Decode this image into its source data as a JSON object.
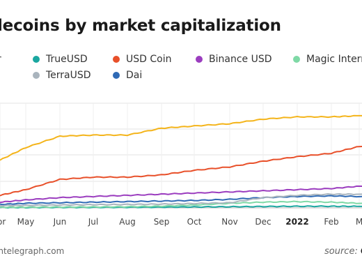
{
  "title": "lecoins by market capitalization",
  "legend": [
    {
      "label": "r",
      "color": "#f4b41a"
    },
    {
      "label": "TrueUSD",
      "color": "#1aa7a0"
    },
    {
      "label": "USD Coin",
      "color": "#e8502a"
    },
    {
      "label": "Binance USD",
      "color": "#9b3dbf"
    },
    {
      "label": "Magic Interne",
      "color": "#7fd9a6"
    },
    {
      "label": "TerraUSD",
      "color": "#a9b4bd"
    },
    {
      "label": "Dai",
      "color": "#2f6ab5"
    }
  ],
  "footer": {
    "site": "intelegraph.com",
    "source_prefix": "source:",
    "source_name": "C"
  },
  "chart_data": {
    "type": "line",
    "x": [
      "Apr",
      "May",
      "Jun",
      "Jul",
      "Aug",
      "Sep",
      "Oct",
      "Nov",
      "Dec",
      "2022",
      "Feb",
      "Mar"
    ],
    "x_tick_labels": [
      "or",
      "May",
      "Jun",
      "Jul",
      "Aug",
      "Sep",
      "Oct",
      "Nov",
      "Dec",
      "2022",
      "Feb",
      "M"
    ],
    "bold_ticks": [
      "2022"
    ],
    "ylim": [
      0,
      92
    ],
    "grid": true,
    "series": [
      {
        "name": "r",
        "color": "#f4b41a",
        "values": [
          42,
          53,
          63,
          64,
          64,
          70,
          72,
          74,
          78,
          80,
          80,
          81
        ]
      },
      {
        "name": "USD Coin",
        "color": "#e8502a",
        "values": [
          11,
          16,
          25,
          27,
          27,
          29,
          33,
          36,
          41,
          45,
          48,
          54
        ]
      },
      {
        "name": "Binance USD",
        "color": "#9b3dbf",
        "values": [
          5,
          7,
          9,
          10,
          11,
          12,
          13,
          14,
          15,
          16,
          17,
          19
        ]
      },
      {
        "name": "TerraUSD",
        "color": "#a9b4bd",
        "values": [
          2,
          2.2,
          2.5,
          2.8,
          3,
          3.3,
          3.8,
          4.5,
          9,
          11,
          12,
          12
        ]
      },
      {
        "name": "Dai",
        "color": "#2f6ab5",
        "values": [
          3,
          4,
          4.5,
          5,
          5.5,
          6,
          6.5,
          7.5,
          9,
          10,
          10.5,
          10
        ]
      },
      {
        "name": "Magic Interne",
        "color": "#7fd9a6",
        "values": [
          0.5,
          0.6,
          0.7,
          0.8,
          1,
          1.5,
          2.5,
          4,
          5,
          5.5,
          5,
          4
        ]
      },
      {
        "name": "TrueUSD",
        "color": "#1aa7a0",
        "values": [
          0.3,
          0.3,
          0.4,
          0.4,
          0.5,
          0.6,
          0.8,
          1,
          1.2,
          1.4,
          1.4,
          1.3
        ]
      }
    ]
  }
}
